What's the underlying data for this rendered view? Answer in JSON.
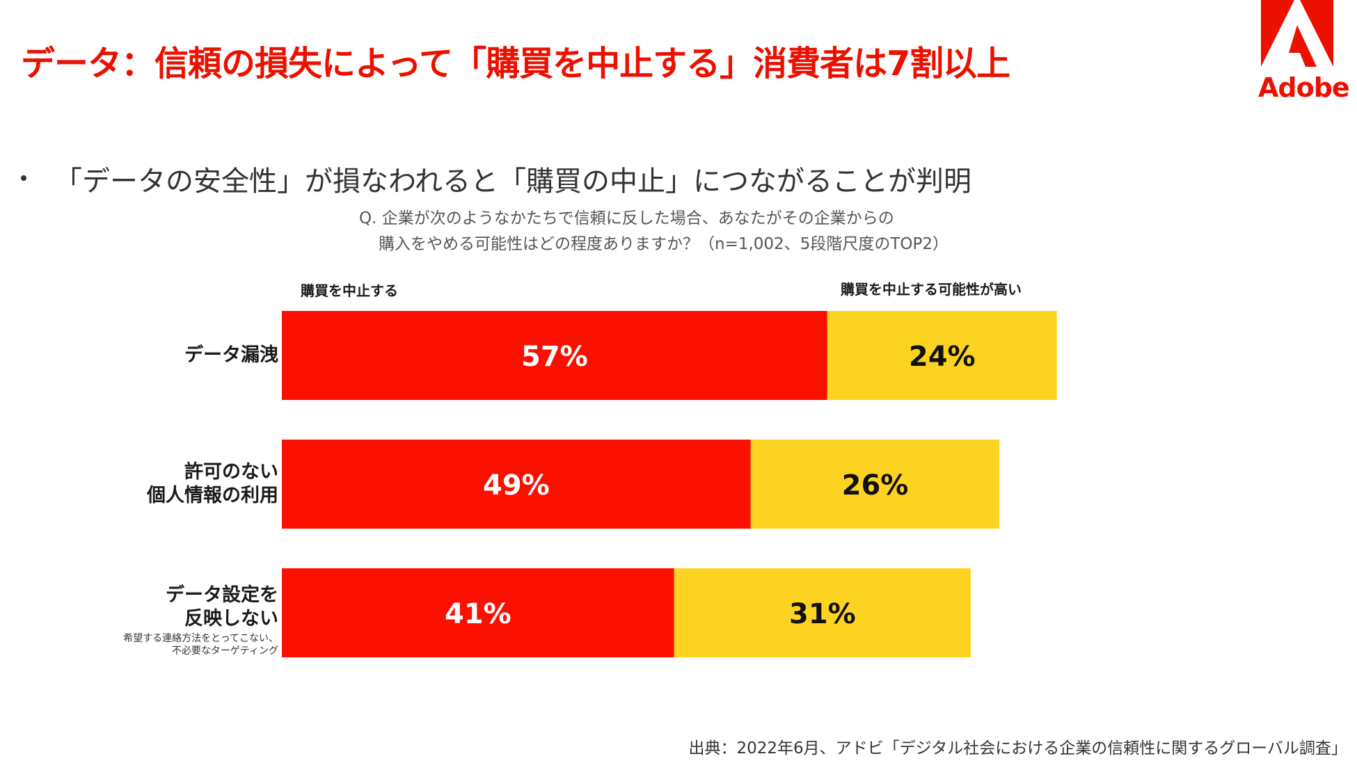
{
  "title": "データ：信頼の損失によって「購買を中止する」消費者は7割以上",
  "logo": {
    "text": "Adobe",
    "color": "#eb1000"
  },
  "bullet": "「データの安全性」が損なわれると「購買の中止」につながることが判明",
  "question": {
    "line1": "Q. 企業が次のようなかたちで信頼に反した場合、あなたがその企業からの",
    "line2": "購入をやめる可能性はどの程度ありますか？（n=1,002、5段階尺度のTOP2）"
  },
  "chart_data": {
    "type": "bar",
    "orientation": "horizontal",
    "stacked": true,
    "unit": "%",
    "categories": [
      "データ漏洩",
      "許可のない個人情報の利用",
      "データ設定を反映しない"
    ],
    "category_lines": [
      [
        "データ漏洩"
      ],
      [
        "許可のない",
        "個人情報の利用"
      ],
      [
        "データ設定を",
        "反映しない"
      ]
    ],
    "category_notes": [
      "",
      "",
      "希望する連絡方法をとってこない、\n不必要なターゲティング"
    ],
    "series": [
      {
        "name": "購買を中止する",
        "values": [
          57,
          49,
          41
        ],
        "color": "#fa0f00",
        "label_color": "#ffffff"
      },
      {
        "name": "購買を中止する可能性が高い",
        "values": [
          24,
          26,
          31
        ],
        "color": "#fdd321",
        "label_color": "#111111"
      }
    ],
    "xlim": [
      0,
      100
    ]
  },
  "source": "出典：2022年6月、アドビ「デジタル社会における企業の信頼性に関するグローバル調査」"
}
